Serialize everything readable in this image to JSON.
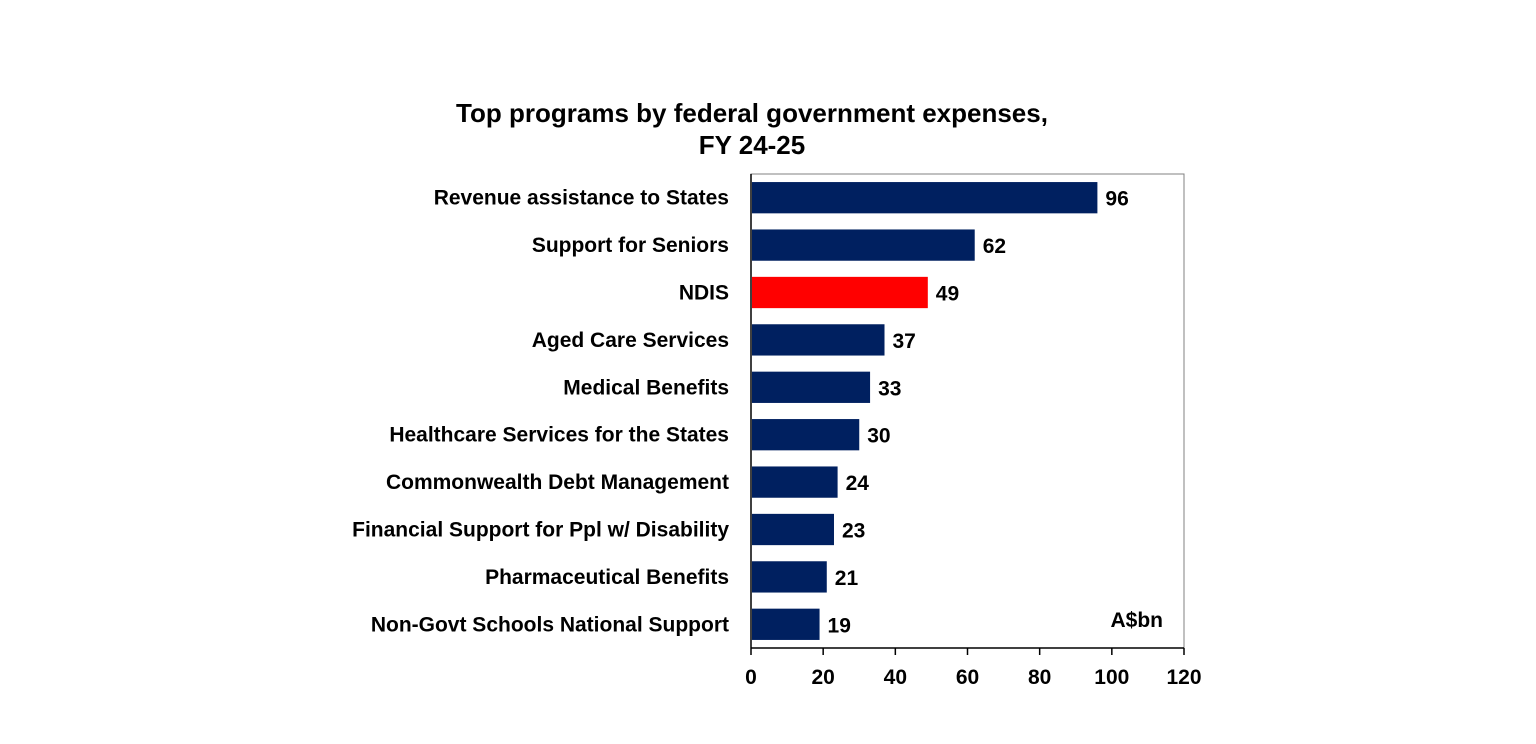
{
  "chart_data": {
    "type": "bar",
    "orientation": "horizontal",
    "title": [
      "Top programs by federal government expenses,",
      "FY 24-25"
    ],
    "unit_label": "A$bn",
    "categories": [
      "Revenue assistance to States",
      "Support for Seniors",
      "NDIS",
      "Aged Care Services",
      "Medical Benefits",
      "Healthcare Services for the States",
      "Commonwealth Debt Management",
      "Financial Support for Ppl w/ Disability",
      "Pharmaceutical Benefits",
      "Non-Govt Schools National Support"
    ],
    "values": [
      96,
      62,
      49,
      37,
      33,
      30,
      24,
      23,
      21,
      19
    ],
    "highlight_category": "NDIS",
    "xlim": [
      0,
      120
    ],
    "xticks": [
      0,
      20,
      40,
      60,
      80,
      100,
      120
    ],
    "grid": false,
    "colors": {
      "bar": "#002060",
      "highlight": "#ff0000",
      "axis": "#000000",
      "frame": "#808080"
    }
  }
}
